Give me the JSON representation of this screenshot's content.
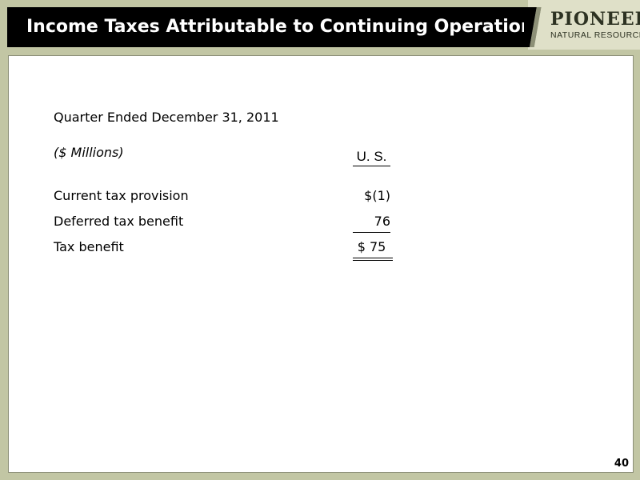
{
  "header": {
    "title": "Income Taxes Attributable to Continuing Operations"
  },
  "logo": {
    "name_top": "PIONEER",
    "name_bottom": "NATURAL RESOURCES"
  },
  "table": {
    "period": "Quarter Ended December 31, 2011",
    "units": "($ Millions)",
    "column_header": "U. S.",
    "rows": [
      {
        "label": "Current tax provision",
        "value": "$(1)"
      },
      {
        "label": "Deferred tax benefit",
        "value": "76"
      },
      {
        "label": "Tax benefit",
        "value": "$ 75"
      }
    ]
  },
  "footer": {
    "page_number": "40"
  },
  "colors": {
    "background": "#c2c6a4",
    "title_bar": "#000000",
    "title_text": "#ffffff",
    "panel": "#ffffff"
  }
}
